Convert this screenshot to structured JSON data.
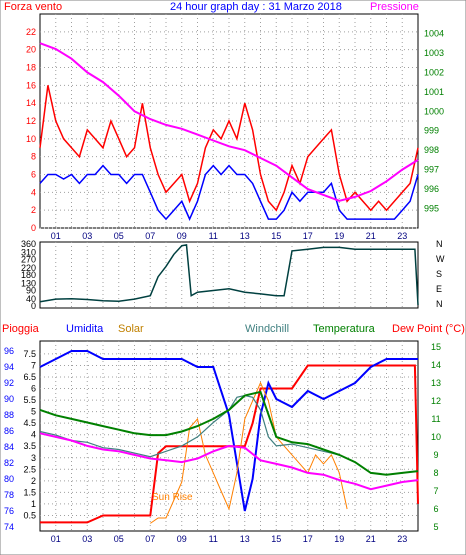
{
  "header": {
    "left_title": "Forza vento",
    "center_title": "24 hour graph day : 31 Marzo 2018",
    "right_title": "Pressione"
  },
  "colors": {
    "wind": "#ff0000",
    "gust_mean": "#0000ff",
    "pressure": "#ff00ff",
    "direction": "#004040",
    "rain": "#ff0000",
    "humidity": "#0000ff",
    "solar": "#ff8000",
    "windchill": "#408080",
    "temperature": "#008000",
    "dewpoint": "#ff00ff",
    "axis_left": "#ff0000",
    "axis_blue": "#0000ff",
    "axis_right": "#008000"
  },
  "x_ticks": [
    "01",
    "03",
    "05",
    "07",
    "09",
    "11",
    "13",
    "15",
    "17",
    "19",
    "21",
    "23"
  ],
  "chart_data": [
    {
      "type": "line",
      "title": "24 hour graph day : 31 Marzo 2018",
      "ylabel_left": "Forza vento",
      "ylabel_right": "Pressione",
      "ylim_left": [
        0,
        24
      ],
      "ylim_right": [
        994,
        1005
      ],
      "left_ticks": [
        0,
        2,
        4,
        6,
        8,
        10,
        12,
        14,
        16,
        18,
        20,
        22
      ],
      "right_ticks": [
        995,
        996,
        997,
        998,
        999,
        1000,
        1001,
        1002,
        1003,
        1004
      ],
      "series": [
        {
          "name": "Forza vento",
          "axis": "left",
          "x": [
            0,
            0.5,
            1,
            1.5,
            2,
            2.5,
            3,
            3.5,
            4,
            4.5,
            5,
            5.5,
            6,
            6.5,
            7,
            7.5,
            8,
            8.5,
            9,
            9.5,
            10,
            10.5,
            11,
            11.5,
            12,
            12.5,
            13,
            13.5,
            14,
            14.5,
            15,
            15.5,
            16,
            16.5,
            17,
            17.5,
            18,
            18.5,
            19,
            19.5,
            20,
            20.5,
            21,
            21.5,
            22,
            22.5,
            23,
            23.5,
            24
          ],
          "y": [
            9,
            16,
            12,
            10,
            9,
            8,
            11,
            10,
            9,
            12,
            10,
            8,
            9,
            14,
            9,
            6,
            4,
            5,
            6,
            3,
            5,
            9,
            11,
            10,
            12,
            10,
            14,
            11,
            6,
            3,
            2,
            4,
            7,
            5,
            8,
            9,
            10,
            11,
            6,
            3,
            4,
            3,
            2,
            3,
            2,
            3,
            4,
            5,
            9
          ]
        },
        {
          "name": "Forza vento raffica",
          "axis": "left",
          "x": [
            0,
            0.5,
            1,
            1.5,
            2,
            2.5,
            3,
            3.5,
            4,
            4.5,
            5,
            5.5,
            6,
            6.5,
            7,
            7.5,
            8,
            8.5,
            9,
            9.5,
            10,
            10.5,
            11,
            11.5,
            12,
            12.5,
            13,
            13.5,
            14,
            14.5,
            15,
            15.5,
            16,
            16.5,
            17,
            17.5,
            18,
            18.5,
            19,
            19.5,
            20,
            20.5,
            21,
            21.5,
            22,
            22.5,
            23,
            23.5,
            24
          ],
          "y": [
            5,
            6,
            6,
            5.5,
            6,
            5,
            6,
            6,
            7,
            6,
            6,
            5,
            6,
            6,
            4,
            2,
            1,
            2,
            3,
            1,
            3,
            6,
            7,
            6,
            7,
            6,
            6,
            5,
            3,
            1,
            1,
            2,
            4,
            3,
            4,
            4,
            4,
            5,
            2,
            1,
            1,
            1,
            1,
            1,
            1,
            1,
            2,
            3,
            6
          ]
        },
        {
          "name": "Pressione",
          "axis": "right",
          "x": [
            0,
            1,
            2,
            3,
            4,
            5,
            6,
            7,
            8,
            9,
            10,
            11,
            12,
            13,
            14,
            15,
            16,
            17,
            18,
            19,
            20,
            21,
            22,
            23,
            24
          ],
          "y": [
            1003.5,
            1003.2,
            1002.7,
            1002,
            1001.5,
            1000.8,
            1000,
            999.6,
            999.3,
            999.1,
            998.8,
            998.5,
            998.2,
            998,
            997.6,
            997.2,
            996.6,
            996,
            995.7,
            995.4,
            995.6,
            995.9,
            996.4,
            997,
            997.5
          ]
        }
      ]
    },
    {
      "type": "line",
      "title": "",
      "ylim": [
        0,
        360
      ],
      "left_ticks": [
        0,
        40,
        90,
        130,
        180,
        220,
        270,
        310,
        360
      ],
      "right_labels": [
        "N",
        "W",
        "S",
        "E",
        "N"
      ],
      "series": [
        {
          "name": "Direzione vento",
          "x": [
            0,
            1,
            2,
            3,
            4,
            5,
            6,
            7,
            7.5,
            8,
            8.5,
            9,
            9.3,
            9.6,
            10,
            11,
            12,
            13,
            14,
            15,
            15.5,
            16,
            17,
            18,
            19,
            20,
            21,
            22,
            23,
            23.8,
            24
          ],
          "y": [
            25,
            40,
            42,
            38,
            30,
            28,
            40,
            60,
            170,
            230,
            300,
            350,
            355,
            60,
            80,
            90,
            100,
            80,
            70,
            60,
            60,
            320,
            330,
            340,
            340,
            330,
            330,
            330,
            330,
            330,
            5
          ]
        }
      ]
    },
    {
      "type": "line",
      "title": "",
      "legend": [
        "Pioggia",
        "Umidita",
        "Solar",
        "Windchill",
        "Temperatura",
        "Dew Point (°C)"
      ],
      "left_ticks_rain": [
        0.5,
        1,
        1.5,
        2,
        2.5,
        3,
        3.5,
        4,
        4.5,
        5,
        5.5,
        6,
        6.5,
        7,
        7.5
      ],
      "left_ticks_humidity": [
        74,
        76,
        78,
        80,
        82,
        84,
        86,
        88,
        90,
        92,
        94,
        96
      ],
      "right_ticks": [
        5,
        6,
        7,
        8,
        9,
        10,
        11,
        12,
        13,
        14,
        15
      ],
      "annotation": "Sun Rise",
      "series": [
        {
          "name": "Pioggia",
          "axis": "rain",
          "x": [
            0,
            1,
            2,
            3,
            4,
            5,
            6,
            7,
            7.5,
            8,
            9,
            10,
            11,
            12,
            13,
            13.5,
            14,
            14.5,
            15,
            16,
            17,
            18,
            19,
            20,
            21,
            22,
            23,
            23.8,
            24
          ],
          "y": [
            0.2,
            0.2,
            0.2,
            0.2,
            0.5,
            0.5,
            0.5,
            0.5,
            3.2,
            3.5,
            3.5,
            3.5,
            3.5,
            3.5,
            3.5,
            4.5,
            6,
            6,
            6,
            6,
            7,
            7,
            7,
            7,
            7,
            7,
            7,
            7,
            1
          ]
        },
        {
          "name": "Umidita",
          "axis": "humidity",
          "x": [
            0,
            1,
            2,
            3,
            4,
            5,
            6,
            7,
            8,
            9,
            10,
            11,
            12,
            12.5,
            13,
            13.5,
            14,
            14.5,
            15,
            16,
            17,
            18,
            19,
            20,
            21,
            22,
            23,
            24
          ],
          "y": [
            94,
            95,
            96,
            96,
            95,
            95,
            95,
            95,
            95,
            95,
            94,
            94,
            88,
            82,
            76,
            80,
            88,
            92,
            90,
            89,
            91,
            90,
            91,
            92,
            94,
            95,
            95,
            95
          ]
        },
        {
          "name": "Solar",
          "axis": "right",
          "x": [
            7,
            7.5,
            8,
            8.5,
            9,
            9.5,
            10,
            10.5,
            11,
            11.5,
            12,
            12.5,
            13,
            13.5,
            14,
            14.5,
            15,
            15.5,
            16,
            16.5,
            17,
            17.5,
            18,
            18.5,
            19,
            19.5
          ],
          "y": [
            5.2,
            5.5,
            5.5,
            6.5,
            7.5,
            10.5,
            11,
            9,
            8,
            7,
            6,
            8,
            11,
            12,
            13,
            12,
            10,
            9.5,
            9,
            8.5,
            8,
            9,
            8.5,
            9,
            8,
            6
          ]
        },
        {
          "name": "Windchill",
          "axis": "right",
          "x": [
            0,
            1,
            2,
            3,
            4,
            5,
            6,
            7,
            8,
            9,
            10,
            11,
            12,
            12.5,
            13,
            13.5,
            14,
            14.5,
            15,
            16,
            17,
            18,
            19
          ],
          "y": [
            10.3,
            10.1,
            9.8,
            9.7,
            9.4,
            9.3,
            9.1,
            8.9,
            9.2,
            9.5,
            10,
            10.8,
            11.5,
            12.2,
            12.3,
            12.2,
            11.5,
            10,
            9.5,
            9.6,
            9.4,
            9.2,
            9
          ]
        },
        {
          "name": "Temperatura",
          "axis": "right",
          "x": [
            0,
            1,
            2,
            3,
            4,
            5,
            6,
            7,
            8,
            9,
            10,
            11,
            12,
            13,
            14,
            15,
            16,
            17,
            18,
            19,
            20,
            21,
            22,
            23,
            24
          ],
          "y": [
            11.5,
            11.2,
            11,
            10.8,
            10.6,
            10.4,
            10.2,
            10.1,
            10.1,
            10.3,
            10.6,
            11,
            11.5,
            12.3,
            12.5,
            10,
            9.7,
            9.6,
            9.3,
            9,
            8.6,
            8,
            7.9,
            8,
            8.1
          ]
        },
        {
          "name": "Dew Point",
          "axis": "right",
          "x": [
            0,
            1,
            2,
            3,
            4,
            5,
            6,
            7,
            8,
            9,
            10,
            11,
            12,
            13,
            14,
            15,
            16,
            17,
            18,
            19,
            20,
            21,
            22,
            23,
            24
          ],
          "y": [
            10.2,
            10,
            9.8,
            9.5,
            9.3,
            9.2,
            9,
            8.8,
            8.7,
            8.6,
            8.8,
            9.2,
            9.5,
            9.4,
            8.7,
            8.5,
            8.3,
            8,
            7.9,
            7.6,
            7.4,
            7.1,
            7.3,
            7.5,
            7.6
          ]
        }
      ]
    }
  ]
}
